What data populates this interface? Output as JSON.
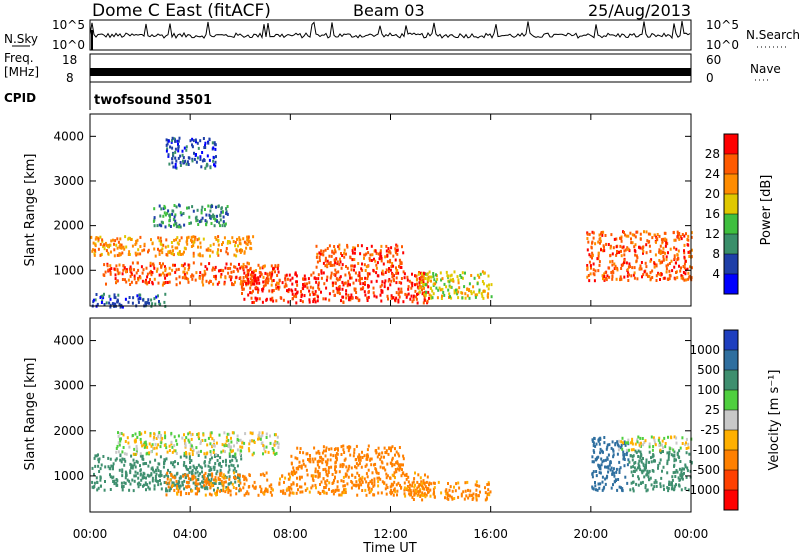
{
  "header": {
    "station": "Dome C East (fitACF)",
    "beam": "Beam 03",
    "date": "25/Aug/2013"
  },
  "strip_nsky": {
    "left_label": "N.Sky",
    "left_ticks": [
      "10^5",
      "10^0"
    ],
    "right_ticks": [
      "10^5",
      "10^0"
    ],
    "right_label": "N.Search"
  },
  "strip_freq": {
    "left_label_line1": "Freq.",
    "left_label_line2": "[MHz]",
    "left_ticks": [
      "18",
      "8"
    ],
    "right_ticks": [
      "60",
      "0"
    ],
    "right_label": "Nave"
  },
  "strip_cpid": {
    "left_label": "CPID",
    "value": "twofsound 3501"
  },
  "power_panel": {
    "ylabel": "Slant Range [km]",
    "yticks": [
      "4000",
      "3000",
      "2000",
      "1000"
    ],
    "colorbar_label": "Power [dB]",
    "colorbar_ticks": [
      "28",
      "24",
      "20",
      "16",
      "12",
      "8",
      "4"
    ],
    "colors": [
      "#0000ff",
      "#1f3fa8",
      "#3a8f6a",
      "#3fbf3f",
      "#e0c800",
      "#ff8c00",
      "#ff5a00",
      "#ff0000"
    ]
  },
  "velocity_panel": {
    "ylabel": "Slant Range [km]",
    "yticks": [
      "4000",
      "3000",
      "2000",
      "1000"
    ],
    "colorbar_label": "Velocity [m s⁻¹]",
    "colorbar_ticks": [
      "1000",
      "500",
      "100",
      "25",
      "-25",
      "-100",
      "-500",
      "-1000"
    ],
    "colors": [
      "#1f3fbf",
      "#2f6f9f",
      "#3f8f6f",
      "#4fcf3f",
      "#c8c8c8",
      "#ffb000",
      "#ff8000",
      "#ff4000",
      "#ff0000"
    ]
  },
  "time_axis": {
    "xlabel": "Time UT",
    "ticks": [
      "00:00",
      "04:00",
      "08:00",
      "12:00",
      "16:00",
      "20:00",
      "00:00"
    ]
  },
  "chart_data": [
    {
      "type": "heatmap",
      "title": "Dome C East (fitACF) Beam 03 25/Aug/2013",
      "quantity": "Power [dB]",
      "xlabel": "Time UT",
      "ylabel": "Slant Range [km]",
      "x_range": [
        "00:00",
        "24:00"
      ],
      "ylim": [
        200,
        4500
      ],
      "clim": [
        0,
        30
      ],
      "blobs": [
        {
          "t0": 0.0,
          "t1": 6.5,
          "r0": 1350,
          "r1": 1800,
          "value": 22
        },
        {
          "t0": 0.5,
          "t1": 7.5,
          "r0": 700,
          "r1": 1200,
          "value": 26
        },
        {
          "t0": 6.0,
          "t1": 13.5,
          "r0": 300,
          "r1": 1000,
          "value": 28
        },
        {
          "t0": 9.0,
          "t1": 12.5,
          "r0": 1000,
          "r1": 1600,
          "value": 27
        },
        {
          "t0": 13.0,
          "t1": 16.0,
          "r0": 400,
          "r1": 1000,
          "value": 18
        },
        {
          "t0": 19.8,
          "t1": 24.0,
          "r0": 800,
          "r1": 1900,
          "value": 26
        },
        {
          "t0": 2.5,
          "t1": 5.5,
          "r0": 2000,
          "r1": 2500,
          "value": 10
        },
        {
          "t0": 3.0,
          "t1": 5.0,
          "r0": 3300,
          "r1": 4000,
          "value": 6
        },
        {
          "t0": 0.0,
          "t1": 3.0,
          "r0": 200,
          "r1": 500,
          "value": 7
        }
      ]
    },
    {
      "type": "heatmap",
      "title": "Dome C East (fitACF) Beam 03 25/Aug/2013",
      "quantity": "Velocity [m s⁻¹]",
      "xlabel": "Time UT",
      "ylabel": "Slant Range [km]",
      "x_range": [
        "00:00",
        "24:00"
      ],
      "ylim": [
        200,
        4500
      ],
      "clim": [
        -1000,
        1000
      ],
      "blobs": [
        {
          "t0": 0.0,
          "t1": 6.0,
          "r0": 700,
          "r1": 1500,
          "value": 300
        },
        {
          "t0": 1.0,
          "t1": 7.5,
          "r0": 1500,
          "r1": 2000,
          "value": 0
        },
        {
          "t0": 3.0,
          "t1": 13.5,
          "r0": 600,
          "r1": 1100,
          "value": -150
        },
        {
          "t0": 8.0,
          "t1": 12.5,
          "r0": 1100,
          "r1": 1700,
          "value": -200
        },
        {
          "t0": 12.5,
          "t1": 16.0,
          "r0": 500,
          "r1": 900,
          "value": -150
        },
        {
          "t0": 20.0,
          "t1": 21.5,
          "r0": 700,
          "r1": 1900,
          "value": 700
        },
        {
          "t0": 21.5,
          "t1": 24.0,
          "r0": 700,
          "r1": 1600,
          "value": 200
        },
        {
          "t0": 21.0,
          "t1": 24.0,
          "r0": 1600,
          "r1": 1900,
          "value": 0
        }
      ]
    }
  ]
}
